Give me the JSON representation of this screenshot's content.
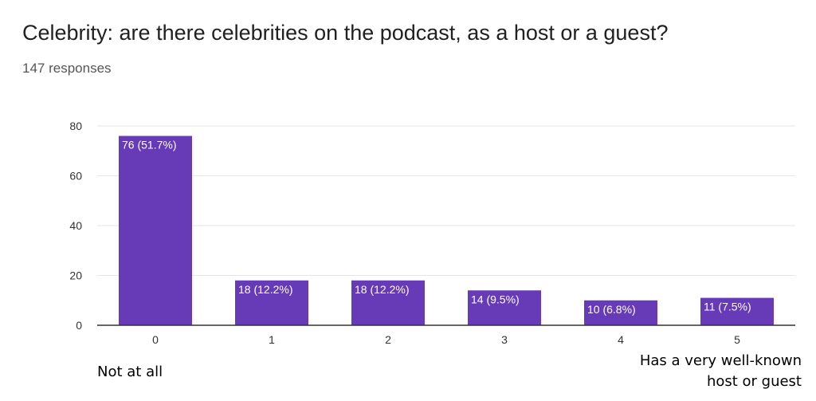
{
  "header": {
    "title": "Celebrity: are there celebrities on the podcast, as a host or a guest?",
    "responses": "147 responses"
  },
  "scale_labels": {
    "low": "Not at all",
    "high_line1": "Has a very well-known",
    "high_line2": "host or guest"
  },
  "chart_data": {
    "type": "bar",
    "categories": [
      "0",
      "1",
      "2",
      "3",
      "4",
      "5"
    ],
    "values": [
      76,
      18,
      18,
      14,
      10,
      11
    ],
    "data_labels": [
      "76 (51.7%)",
      "18 (12.2%)",
      "18 (12.2%)",
      "14 (9.5%)",
      "10 (6.8%)",
      "11 (7.5%)"
    ],
    "title": "Celebrity: are there celebrities on the podcast, as a host or a guest?",
    "xlabel": "",
    "ylabel": "",
    "ylim": [
      0,
      80
    ],
    "yticks": [
      0,
      20,
      40,
      60,
      80
    ],
    "grid": true,
    "bar_color": "#673ab7"
  }
}
